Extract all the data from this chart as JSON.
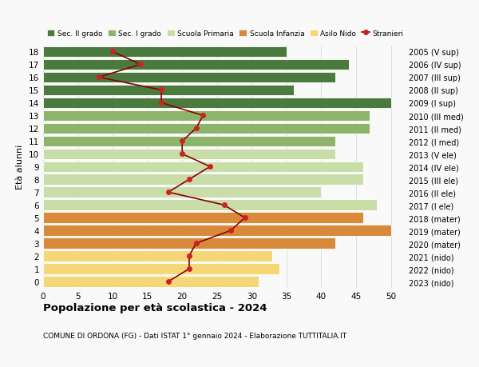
{
  "ages": [
    0,
    1,
    2,
    3,
    4,
    5,
    6,
    7,
    8,
    9,
    10,
    11,
    12,
    13,
    14,
    15,
    16,
    17,
    18
  ],
  "right_labels": [
    "2023 (nido)",
    "2022 (nido)",
    "2021 (nido)",
    "2020 (mater)",
    "2019 (mater)",
    "2018 (mater)",
    "2017 (I ele)",
    "2016 (II ele)",
    "2015 (III ele)",
    "2014 (IV ele)",
    "2013 (V ele)",
    "2012 (I med)",
    "2011 (II med)",
    "2010 (III med)",
    "2009 (I sup)",
    "2008 (II sup)",
    "2007 (III sup)",
    "2006 (IV sup)",
    "2005 (V sup)"
  ],
  "bar_values": [
    31,
    34,
    33,
    42,
    50,
    46,
    48,
    40,
    46,
    46,
    42,
    42,
    47,
    47,
    50,
    36,
    42,
    44,
    35
  ],
  "bar_colors": [
    "#f5d778",
    "#f5d778",
    "#f5d778",
    "#d8893a",
    "#d8893a",
    "#d8893a",
    "#c8dda8",
    "#c8dda8",
    "#c8dda8",
    "#c8dda8",
    "#c8dda8",
    "#8db56a",
    "#8db56a",
    "#8db56a",
    "#4a7a3d",
    "#4a7a3d",
    "#4a7a3d",
    "#4a7a3d",
    "#4a7a3d"
  ],
  "stranieri_values": [
    18,
    21,
    21,
    22,
    27,
    29,
    26,
    18,
    21,
    24,
    20,
    20,
    22,
    23,
    17,
    17,
    8,
    14,
    10
  ],
  "xlim": [
    0,
    52
  ],
  "xticks": [
    0,
    5,
    10,
    15,
    20,
    25,
    30,
    35,
    40,
    45,
    50
  ],
  "left_ylabel": "Età alunni",
  "title": "Popolazione per età scolastica - 2024",
  "subtitle": "COMUNE DI ORDONA (FG) - Dati ISTAT 1° gennaio 2024 - Elaborazione TUTTITALIA.IT",
  "legend_labels": [
    "Sec. II grado",
    "Sec. I grado",
    "Scuola Primaria",
    "Scuola Infanzia",
    "Asilo Nido",
    "Stranieri"
  ],
  "legend_colors": [
    "#4a7a3d",
    "#8db56a",
    "#c8dda8",
    "#d8893a",
    "#f5d778",
    "#aa1111"
  ],
  "bar_height": 0.85,
  "background_color": "#f9f9f9",
  "grid_color": "#dddddd",
  "stranieri_line_color": "#8b0000",
  "stranieri_marker_color": "#cc2222"
}
